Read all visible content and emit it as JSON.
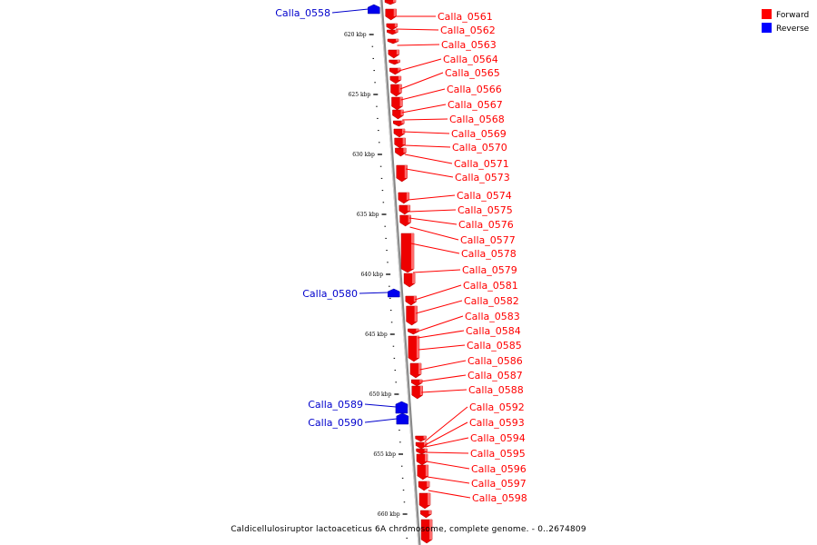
{
  "legend": [
    {
      "label": "Forward",
      "color": "#ff0000"
    },
    {
      "label": "Reverse",
      "color": "#0000ff"
    }
  ],
  "caption": "Caldicellulosiruptor lactoaceticus 6A chromosome, complete genome. - 0..2674809",
  "ticks": [
    "620 kbp",
    "625 kbp",
    "630 kbp",
    "635 kbp",
    "640 kbp",
    "645 kbp",
    "650 kbp",
    "655 kbp",
    "660 kbp"
  ],
  "forward_genes": [
    "Calla_0561",
    "Calla_0562",
    "Calla_0563",
    "Calla_0564",
    "Calla_0565",
    "Calla_0566",
    "Calla_0567",
    "Calla_0568",
    "Calla_0569",
    "Calla_0570",
    "Calla_0571",
    "Calla_0573",
    "Calla_0574",
    "Calla_0575",
    "Calla_0576",
    "Calla_0577",
    "Calla_0578",
    "Calla_0579",
    "Calla_0581",
    "Calla_0582",
    "Calla_0583",
    "Calla_0584",
    "Calla_0585",
    "Calla_0586",
    "Calla_0587",
    "Calla_0588",
    "Calla_0592",
    "Calla_0593",
    "Calla_0594",
    "Calla_0595",
    "Calla_0596",
    "Calla_0597",
    "Calla_0598"
  ],
  "reverse_genes": [
    "Calla_0558",
    "Calla_0580",
    "Calla_0589",
    "Calla_0590"
  ]
}
